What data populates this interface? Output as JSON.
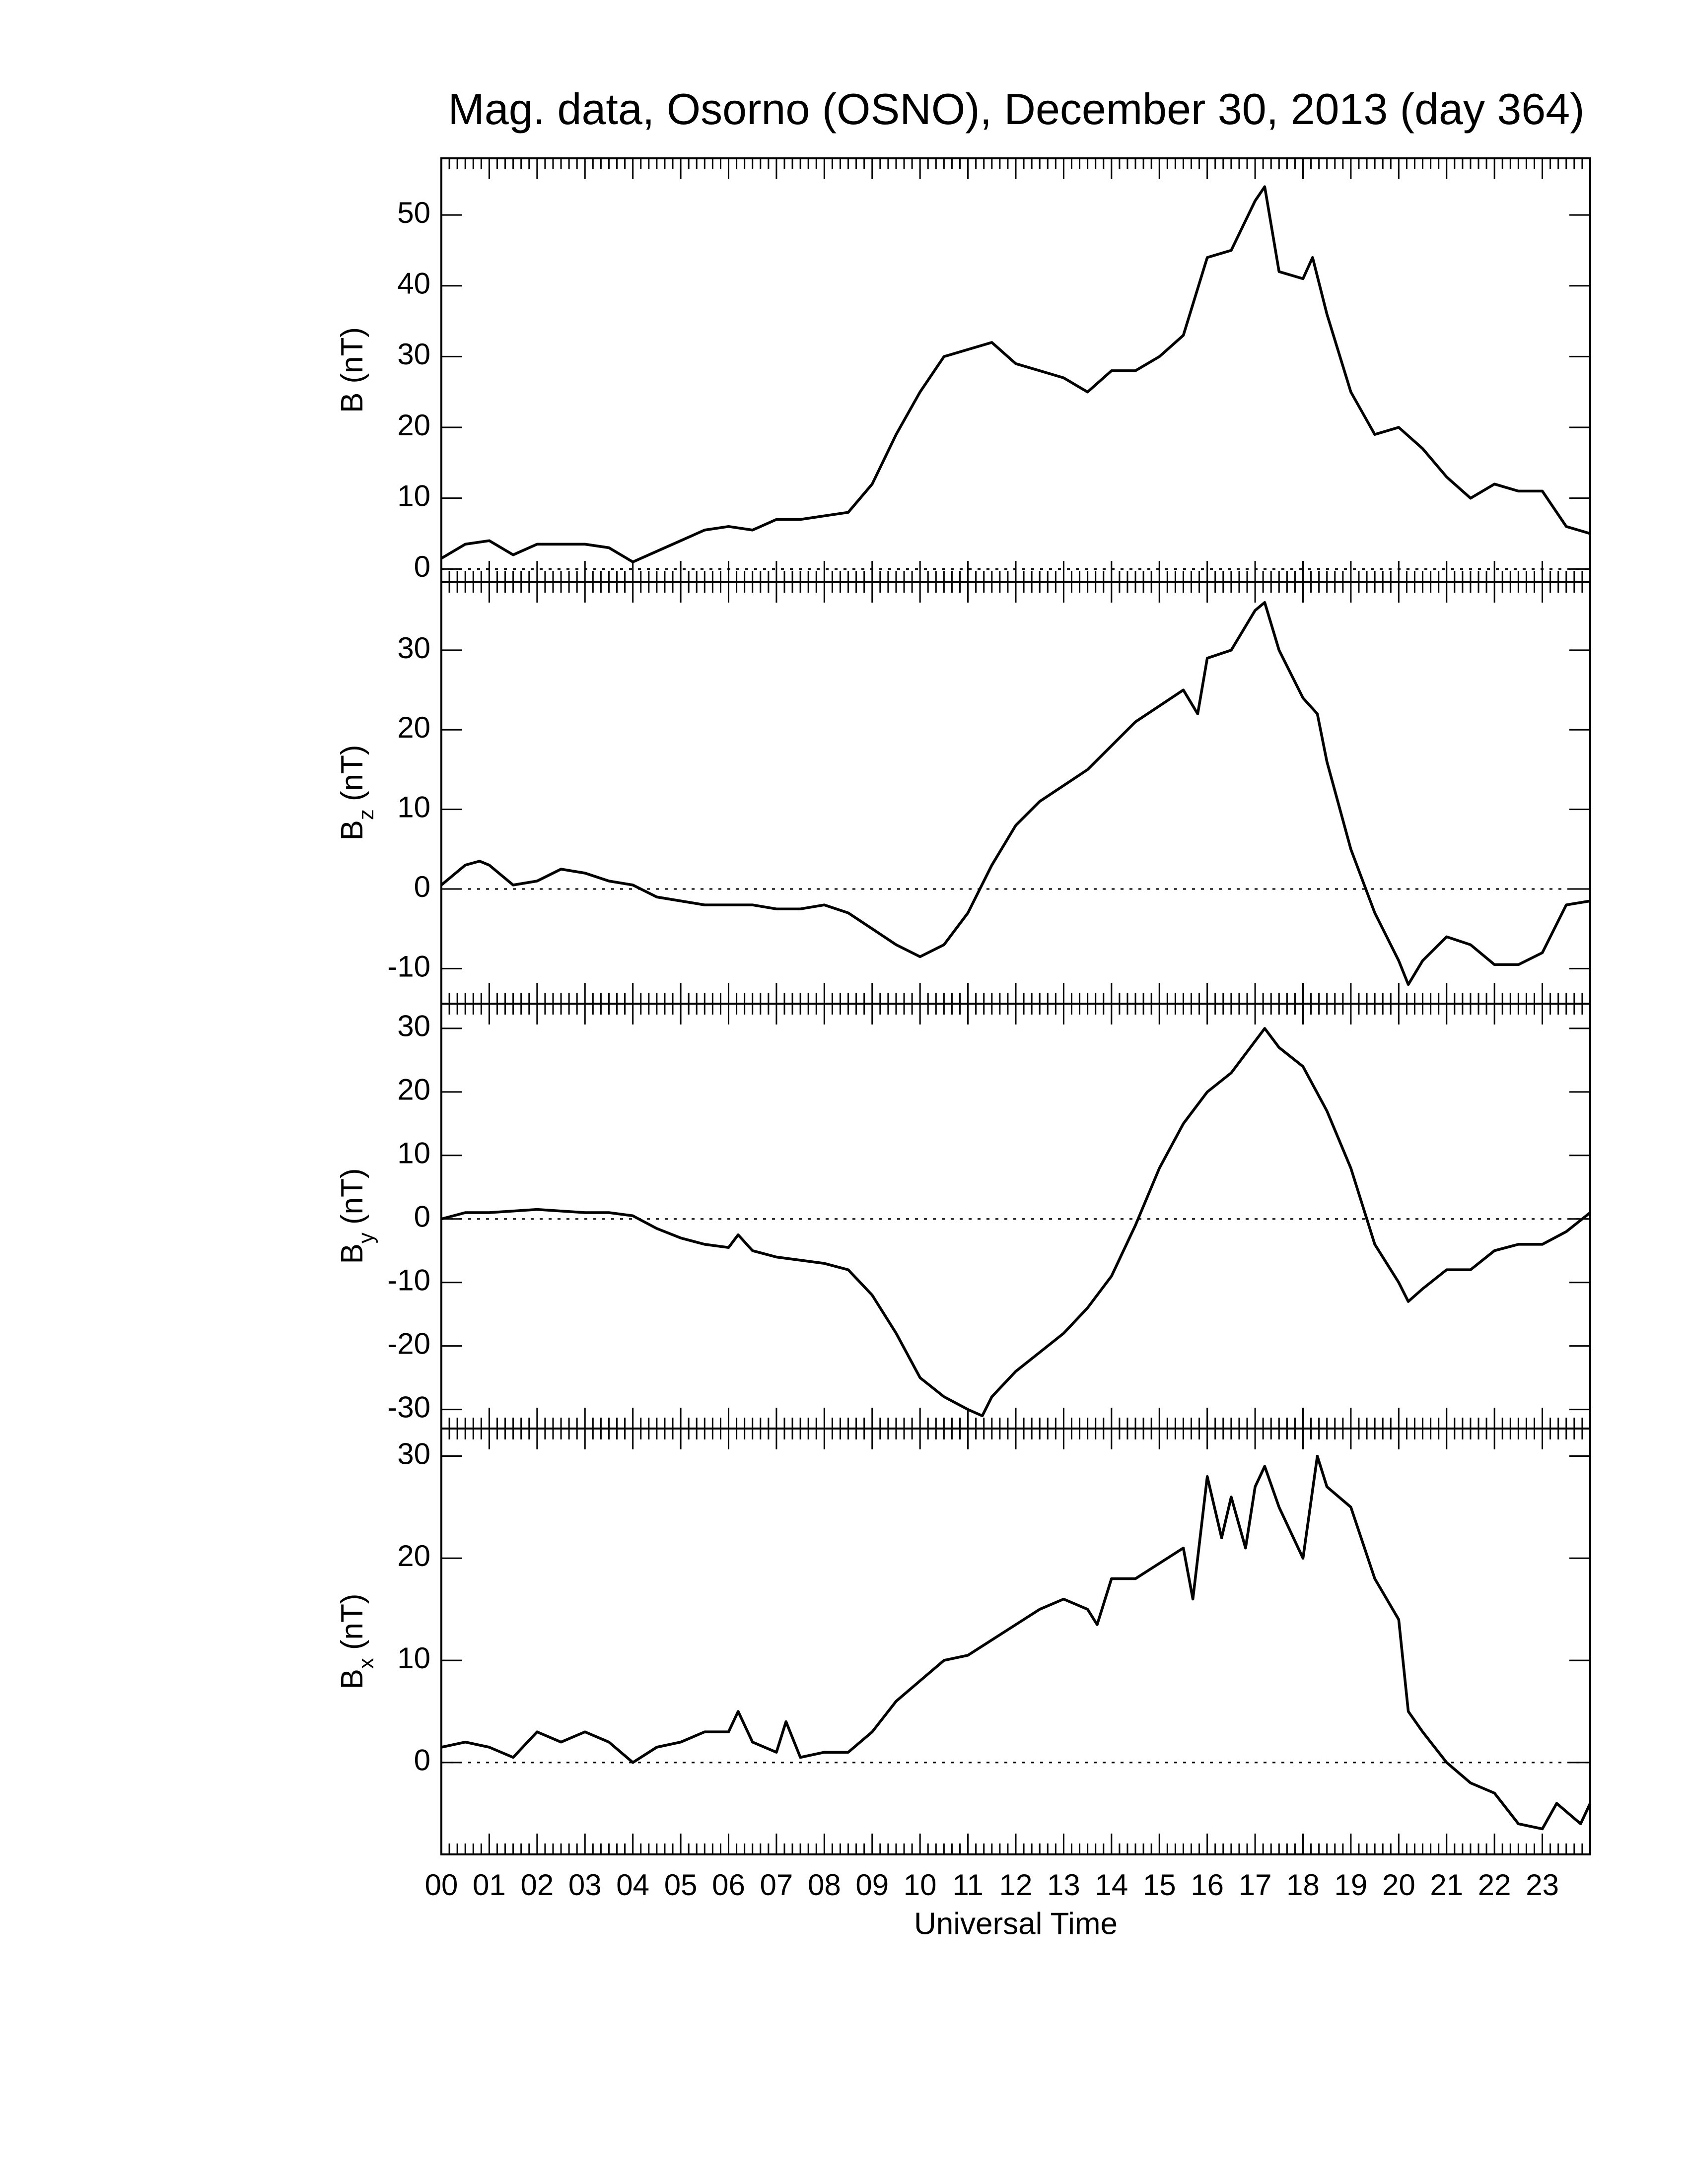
{
  "chart_data": [
    {
      "type": "line",
      "title": "Mag. data, Osorno (OSNO), December 30, 2013 (day 364)",
      "ylabel": {
        "symbol": "B",
        "unit": "(nT)"
      },
      "xlim": [
        0,
        24
      ],
      "ylim": [
        -1.8,
        58
      ],
      "yticks": [
        0,
        10,
        20,
        30,
        40,
        50
      ],
      "reference_line": 0,
      "color": "#000000",
      "x": [
        0,
        0.5,
        1,
        1.5,
        2,
        2.5,
        3,
        3.5,
        4,
        4.5,
        5,
        5.5,
        6,
        6.5,
        7,
        7.5,
        8,
        8.5,
        9,
        9.5,
        10,
        10.5,
        11,
        11.5,
        12,
        12.5,
        13,
        13.5,
        14,
        14.5,
        15,
        15.5,
        16,
        16.5,
        17,
        17.2,
        17.5,
        18,
        18.2,
        18.5,
        19,
        19.5,
        20,
        20.5,
        21,
        21.5,
        22,
        22.5,
        23,
        23.5,
        24
      ],
      "values": [
        1.5,
        3.5,
        4,
        2,
        3.5,
        3.5,
        3.5,
        3,
        1,
        2.5,
        4,
        5.5,
        6,
        5.5,
        7,
        7,
        7.5,
        8,
        12,
        19,
        25,
        30,
        31,
        32,
        29,
        28,
        27,
        25,
        28,
        28,
        30,
        33,
        44,
        45,
        52,
        54,
        42,
        41,
        44,
        36,
        25,
        19,
        20,
        17,
        13,
        10,
        12,
        11,
        11,
        6,
        5
      ]
    },
    {
      "type": "line",
      "ylabel": {
        "symbol": "B",
        "subscript": "z",
        "unit": "(nT)"
      },
      "xlim": [
        0,
        24
      ],
      "ylim": [
        -14.4,
        38.6
      ],
      "yticks": [
        -10,
        0,
        10,
        20,
        30
      ],
      "reference_line": 0,
      "color": "#000000",
      "x": [
        0,
        0.5,
        0.8,
        1,
        1.5,
        2,
        2.5,
        3,
        3.5,
        4,
        4.5,
        5,
        5.5,
        6,
        6.5,
        7,
        7.5,
        8,
        8.5,
        9,
        9.5,
        10,
        10.5,
        11,
        11.5,
        12,
        12.5,
        13,
        13.5,
        14,
        14.5,
        15,
        15.5,
        15.8,
        16,
        16.5,
        17,
        17.2,
        17.5,
        18,
        18.3,
        18.5,
        19,
        19.5,
        20,
        20.2,
        20.5,
        21,
        21.5,
        22,
        22.5,
        23,
        23.5,
        24
      ],
      "values": [
        0.5,
        3,
        3.5,
        3,
        0.5,
        1,
        2.5,
        2,
        1,
        0.5,
        -1,
        -1.5,
        -2,
        -2,
        -2,
        -2.5,
        -2.5,
        -2,
        -3,
        -5,
        -7,
        -8.5,
        -7,
        -3,
        3,
        8,
        11,
        13,
        15,
        18,
        21,
        23,
        25,
        22,
        29,
        30,
        35,
        36,
        30,
        24,
        22,
        16,
        5,
        -3,
        -9,
        -12,
        -9,
        -6,
        -7,
        -9.5,
        -9.5,
        -8,
        -2,
        -1.5
      ]
    },
    {
      "type": "line",
      "ylabel": {
        "symbol": "B",
        "subscript": "y",
        "unit": "(nT)"
      },
      "xlim": [
        0,
        24
      ],
      "ylim": [
        -33,
        33.9
      ],
      "yticks": [
        -30,
        -20,
        -10,
        0,
        10,
        20,
        30
      ],
      "reference_line": 0,
      "color": "#000000",
      "x": [
        0,
        0.5,
        1,
        2,
        3,
        3.5,
        4,
        4.5,
        5,
        5.5,
        6,
        6.2,
        6.5,
        7,
        7.5,
        8,
        8.5,
        9,
        9.5,
        10,
        10.5,
        11,
        11.3,
        11.5,
        12,
        12.5,
        13,
        13.5,
        14,
        14.5,
        15,
        15.5,
        16,
        16.5,
        17,
        17.2,
        17.5,
        18,
        18.5,
        19,
        19.5,
        20,
        20.2,
        20.5,
        21,
        21.5,
        22,
        22.5,
        23,
        23.5,
        24
      ],
      "values": [
        0,
        1,
        1,
        1.5,
        1,
        1,
        0.5,
        -1.5,
        -3,
        -4,
        -4.5,
        -2.5,
        -5,
        -6,
        -6.5,
        -7,
        -8,
        -12,
        -18,
        -25,
        -28,
        -30,
        -31,
        -28,
        -24,
        -21,
        -18,
        -14,
        -9,
        -1,
        8,
        15,
        20,
        23,
        28,
        30,
        27,
        24,
        17,
        8,
        -4,
        -10,
        -13,
        -11,
        -8,
        -8,
        -5,
        -4,
        -4,
        -2,
        1
      ]
    },
    {
      "type": "line",
      "ylabel": {
        "symbol": "B",
        "subscript": "x",
        "unit": "(nT)"
      },
      "xlabel": "Universal Time",
      "xlim": [
        0,
        24
      ],
      "ylim": [
        -9,
        32.7
      ],
      "yticks": [
        0,
        10,
        20,
        30
      ],
      "reference_line": 0,
      "color": "#000000",
      "xticks": [
        {
          "value": 0,
          "label": "00"
        },
        {
          "value": 1,
          "label": "01"
        },
        {
          "value": 2,
          "label": "02"
        },
        {
          "value": 3,
          "label": "03"
        },
        {
          "value": 4,
          "label": "04"
        },
        {
          "value": 5,
          "label": "05"
        },
        {
          "value": 6,
          "label": "06"
        },
        {
          "value": 7,
          "label": "07"
        },
        {
          "value": 8,
          "label": "08"
        },
        {
          "value": 9,
          "label": "09"
        },
        10,
        11,
        12,
        13,
        14,
        15,
        16,
        17,
        18,
        19,
        20,
        21,
        22,
        23
      ],
      "x": [
        0,
        0.5,
        1,
        1.5,
        2,
        2.5,
        3,
        3.5,
        4,
        4.5,
        5,
        5.5,
        6,
        6.2,
        6.5,
        7,
        7.2,
        7.5,
        8,
        8.5,
        9,
        9.5,
        10,
        10.5,
        11,
        11.5,
        12,
        12.5,
        13,
        13.5,
        13.7,
        14,
        14.5,
        15,
        15.5,
        15.7,
        16,
        16.3,
        16.5,
        16.8,
        17,
        17.2,
        17.5,
        18,
        18.3,
        18.5,
        19,
        19.5,
        20,
        20.2,
        20.5,
        21,
        21.5,
        22,
        22.5,
        23,
        23.3,
        23.8,
        24
      ],
      "values": [
        1.5,
        2,
        1.5,
        0.5,
        3,
        2,
        3,
        2,
        0,
        1.5,
        2,
        3,
        3,
        5,
        2,
        1,
        4,
        0.5,
        1,
        1,
        3,
        6,
        8,
        10,
        10.5,
        12,
        13.5,
        15,
        16,
        15,
        13.5,
        18,
        18,
        19.5,
        21,
        16,
        28,
        22,
        26,
        21,
        27,
        29,
        25,
        20,
        30,
        27,
        25,
        18,
        14,
        5,
        3,
        0,
        -2,
        -3,
        -6,
        -6.5,
        -4,
        -6,
        -4
      ]
    }
  ]
}
